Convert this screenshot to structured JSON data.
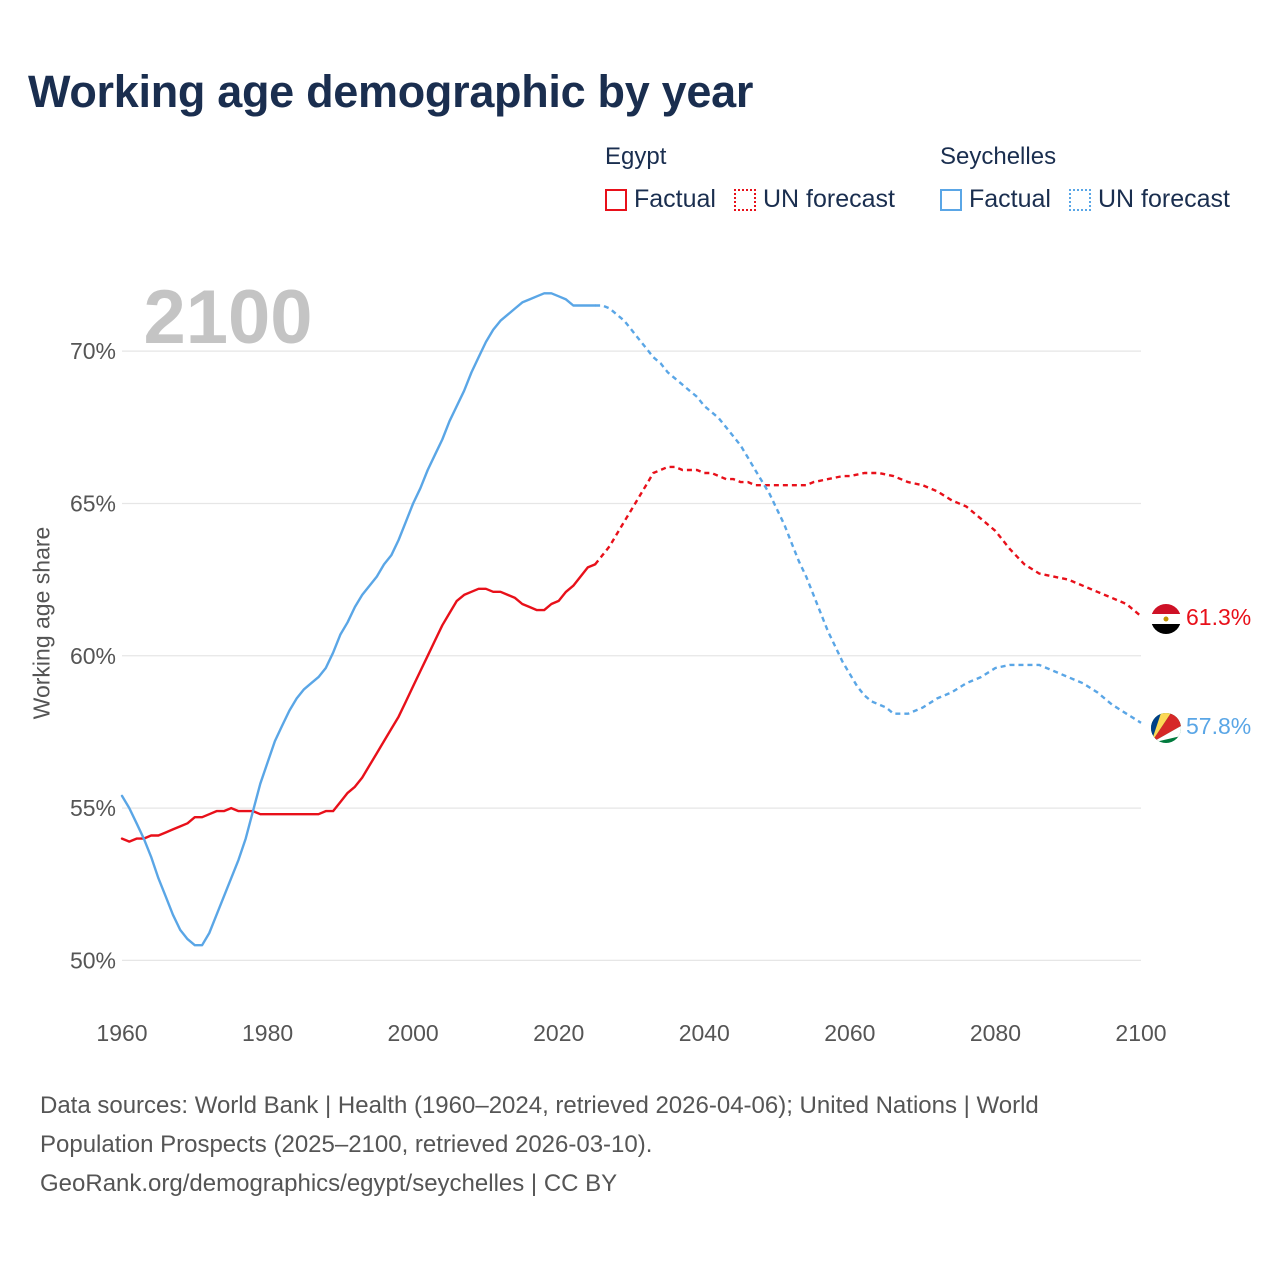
{
  "title": "Working age demographic by year",
  "legend": [
    {
      "country": "Egypt",
      "color": "#e8101a",
      "factual_label": "Factual",
      "forecast_label": "UN forecast"
    },
    {
      "country": "Seychelles",
      "color": "#5aa6e6",
      "factual_label": "Factual",
      "forecast_label": "UN forecast"
    }
  ],
  "chart_data": {
    "type": "line",
    "title": "Working age demographic by year",
    "xlabel": "",
    "ylabel": "Working age share",
    "xlim": [
      1960,
      2100
    ],
    "ylim": [
      48.7,
      72.5
    ],
    "x_ticks": [
      1960,
      1980,
      2000,
      2020,
      2040,
      2060,
      2080,
      2100
    ],
    "y_ticks": [
      50,
      55,
      60,
      65,
      70
    ],
    "y_tick_suffix": "%",
    "year_watermark": "2100",
    "grid": true,
    "forecast_start": 2025,
    "series": [
      {
        "name": "Egypt",
        "color": "#e8101a",
        "end_label": "61.3%",
        "points": [
          [
            1960,
            54.0
          ],
          [
            1961,
            53.9
          ],
          [
            1962,
            54.0
          ],
          [
            1963,
            54.0
          ],
          [
            1964,
            54.1
          ],
          [
            1965,
            54.1
          ],
          [
            1966,
            54.2
          ],
          [
            1967,
            54.3
          ],
          [
            1968,
            54.4
          ],
          [
            1969,
            54.5
          ],
          [
            1970,
            54.7
          ],
          [
            1971,
            54.7
          ],
          [
            1972,
            54.8
          ],
          [
            1973,
            54.9
          ],
          [
            1974,
            54.9
          ],
          [
            1975,
            55.0
          ],
          [
            1976,
            54.9
          ],
          [
            1977,
            54.9
          ],
          [
            1978,
            54.9
          ],
          [
            1979,
            54.8
          ],
          [
            1980,
            54.8
          ],
          [
            1982,
            54.8
          ],
          [
            1984,
            54.8
          ],
          [
            1986,
            54.8
          ],
          [
            1987,
            54.8
          ],
          [
            1988,
            54.9
          ],
          [
            1989,
            54.9
          ],
          [
            1990,
            55.2
          ],
          [
            1991,
            55.5
          ],
          [
            1992,
            55.7
          ],
          [
            1993,
            56.0
          ],
          [
            1994,
            56.4
          ],
          [
            1995,
            56.8
          ],
          [
            1996,
            57.2
          ],
          [
            1997,
            57.6
          ],
          [
            1998,
            58.0
          ],
          [
            1999,
            58.5
          ],
          [
            2000,
            59.0
          ],
          [
            2001,
            59.5
          ],
          [
            2002,
            60.0
          ],
          [
            2003,
            60.5
          ],
          [
            2004,
            61.0
          ],
          [
            2005,
            61.4
          ],
          [
            2006,
            61.8
          ],
          [
            2007,
            62.0
          ],
          [
            2008,
            62.1
          ],
          [
            2009,
            62.2
          ],
          [
            2010,
            62.2
          ],
          [
            2011,
            62.1
          ],
          [
            2012,
            62.1
          ],
          [
            2013,
            62.0
          ],
          [
            2014,
            61.9
          ],
          [
            2015,
            61.7
          ],
          [
            2016,
            61.6
          ],
          [
            2017,
            61.5
          ],
          [
            2018,
            61.5
          ],
          [
            2019,
            61.7
          ],
          [
            2020,
            61.8
          ],
          [
            2021,
            62.1
          ],
          [
            2022,
            62.3
          ],
          [
            2023,
            62.6
          ],
          [
            2024,
            62.9
          ],
          [
            2025,
            63.0
          ],
          [
            2026,
            63.3
          ],
          [
            2027,
            63.6
          ],
          [
            2028,
            64.0
          ],
          [
            2029,
            64.4
          ],
          [
            2030,
            64.8
          ],
          [
            2031,
            65.2
          ],
          [
            2032,
            65.6
          ],
          [
            2033,
            66.0
          ],
          [
            2034,
            66.1
          ],
          [
            2035,
            66.2
          ],
          [
            2036,
            66.2
          ],
          [
            2037,
            66.1
          ],
          [
            2038,
            66.1
          ],
          [
            2039,
            66.1
          ],
          [
            2040,
            66.0
          ],
          [
            2041,
            66.0
          ],
          [
            2042,
            65.9
          ],
          [
            2043,
            65.8
          ],
          [
            2044,
            65.8
          ],
          [
            2045,
            65.7
          ],
          [
            2046,
            65.7
          ],
          [
            2047,
            65.6
          ],
          [
            2048,
            65.6
          ],
          [
            2050,
            65.6
          ],
          [
            2052,
            65.6
          ],
          [
            2054,
            65.6
          ],
          [
            2055,
            65.7
          ],
          [
            2057,
            65.8
          ],
          [
            2059,
            65.9
          ],
          [
            2060,
            65.9
          ],
          [
            2062,
            66.0
          ],
          [
            2064,
            66.0
          ],
          [
            2066,
            65.9
          ],
          [
            2068,
            65.7
          ],
          [
            2070,
            65.6
          ],
          [
            2072,
            65.4
          ],
          [
            2074,
            65.1
          ],
          [
            2076,
            64.9
          ],
          [
            2078,
            64.5
          ],
          [
            2080,
            64.1
          ],
          [
            2082,
            63.5
          ],
          [
            2084,
            63.0
          ],
          [
            2086,
            62.7
          ],
          [
            2088,
            62.6
          ],
          [
            2090,
            62.5
          ],
          [
            2092,
            62.3
          ],
          [
            2094,
            62.1
          ],
          [
            2096,
            61.9
          ],
          [
            2098,
            61.7
          ],
          [
            2099,
            61.5
          ],
          [
            2100,
            61.3
          ]
        ]
      },
      {
        "name": "Seychelles",
        "color": "#5aa6e6",
        "end_label": "57.8%",
        "points": [
          [
            1960,
            55.4
          ],
          [
            1961,
            55.0
          ],
          [
            1962,
            54.5
          ],
          [
            1963,
            54.0
          ],
          [
            1964,
            53.4
          ],
          [
            1965,
            52.7
          ],
          [
            1966,
            52.1
          ],
          [
            1967,
            51.5
          ],
          [
            1968,
            51.0
          ],
          [
            1969,
            50.7
          ],
          [
            1970,
            50.5
          ],
          [
            1971,
            50.5
          ],
          [
            1972,
            50.9
          ],
          [
            1973,
            51.5
          ],
          [
            1974,
            52.1
          ],
          [
            1975,
            52.7
          ],
          [
            1976,
            53.3
          ],
          [
            1977,
            54.0
          ],
          [
            1978,
            54.9
          ],
          [
            1979,
            55.8
          ],
          [
            1980,
            56.5
          ],
          [
            1981,
            57.2
          ],
          [
            1982,
            57.7
          ],
          [
            1983,
            58.2
          ],
          [
            1984,
            58.6
          ],
          [
            1985,
            58.9
          ],
          [
            1986,
            59.1
          ],
          [
            1987,
            59.3
          ],
          [
            1988,
            59.6
          ],
          [
            1989,
            60.1
          ],
          [
            1990,
            60.7
          ],
          [
            1991,
            61.1
          ],
          [
            1992,
            61.6
          ],
          [
            1993,
            62.0
          ],
          [
            1994,
            62.3
          ],
          [
            1995,
            62.6
          ],
          [
            1996,
            63.0
          ],
          [
            1997,
            63.3
          ],
          [
            1998,
            63.8
          ],
          [
            1999,
            64.4
          ],
          [
            2000,
            65.0
          ],
          [
            2001,
            65.5
          ],
          [
            2002,
            66.1
          ],
          [
            2003,
            66.6
          ],
          [
            2004,
            67.1
          ],
          [
            2005,
            67.7
          ],
          [
            2006,
            68.2
          ],
          [
            2007,
            68.7
          ],
          [
            2008,
            69.3
          ],
          [
            2009,
            69.8
          ],
          [
            2010,
            70.3
          ],
          [
            2011,
            70.7
          ],
          [
            2012,
            71.0
          ],
          [
            2013,
            71.2
          ],
          [
            2014,
            71.4
          ],
          [
            2015,
            71.6
          ],
          [
            2016,
            71.7
          ],
          [
            2017,
            71.8
          ],
          [
            2018,
            71.9
          ],
          [
            2019,
            71.9
          ],
          [
            2020,
            71.8
          ],
          [
            2021,
            71.7
          ],
          [
            2022,
            71.5
          ],
          [
            2023,
            71.5
          ],
          [
            2024,
            71.5
          ],
          [
            2025,
            71.5
          ],
          [
            2026,
            71.5
          ],
          [
            2027,
            71.4
          ],
          [
            2028,
            71.2
          ],
          [
            2029,
            71.0
          ],
          [
            2030,
            70.7
          ],
          [
            2031,
            70.4
          ],
          [
            2032,
            70.1
          ],
          [
            2033,
            69.8
          ],
          [
            2034,
            69.6
          ],
          [
            2035,
            69.3
          ],
          [
            2036,
            69.1
          ],
          [
            2037,
            68.9
          ],
          [
            2038,
            68.7
          ],
          [
            2039,
            68.5
          ],
          [
            2040,
            68.2
          ],
          [
            2041,
            68.0
          ],
          [
            2042,
            67.8
          ],
          [
            2043,
            67.5
          ],
          [
            2044,
            67.2
          ],
          [
            2045,
            66.9
          ],
          [
            2046,
            66.5
          ],
          [
            2047,
            66.1
          ],
          [
            2048,
            65.7
          ],
          [
            2049,
            65.3
          ],
          [
            2050,
            64.8
          ],
          [
            2051,
            64.3
          ],
          [
            2052,
            63.7
          ],
          [
            2053,
            63.1
          ],
          [
            2054,
            62.6
          ],
          [
            2055,
            62.0
          ],
          [
            2056,
            61.4
          ],
          [
            2057,
            60.8
          ],
          [
            2058,
            60.3
          ],
          [
            2059,
            59.8
          ],
          [
            2060,
            59.4
          ],
          [
            2061,
            59.0
          ],
          [
            2062,
            58.7
          ],
          [
            2063,
            58.5
          ],
          [
            2064,
            58.4
          ],
          [
            2065,
            58.3
          ],
          [
            2066,
            58.1
          ],
          [
            2068,
            58.1
          ],
          [
            2070,
            58.3
          ],
          [
            2072,
            58.6
          ],
          [
            2074,
            58.8
          ],
          [
            2076,
            59.1
          ],
          [
            2078,
            59.3
          ],
          [
            2080,
            59.6
          ],
          [
            2082,
            59.7
          ],
          [
            2084,
            59.7
          ],
          [
            2086,
            59.7
          ],
          [
            2088,
            59.5
          ],
          [
            2090,
            59.3
          ],
          [
            2092,
            59.1
          ],
          [
            2094,
            58.8
          ],
          [
            2096,
            58.4
          ],
          [
            2098,
            58.1
          ],
          [
            2100,
            57.8
          ]
        ]
      }
    ]
  },
  "footer": {
    "line1": "Data sources: World Bank | Health (1960–2024, retrieved 2026-04-06); United Nations | World",
    "line2": "Population Prospects (2025–2100, retrieved 2026-03-10).",
    "line3": "GeoRank.org/demographics/egypt/seychelles | CC BY"
  }
}
